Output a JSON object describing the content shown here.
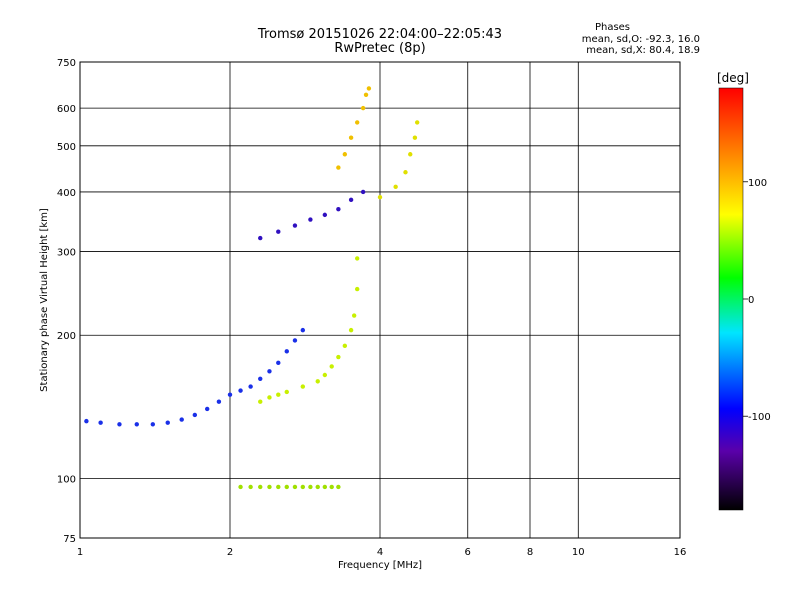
{
  "header": {
    "title_line1": "Tromsø 20151026 22:04:00–22:05:43",
    "title_line2": "RwPretec (8p)"
  },
  "phase_info": {
    "heading": "Phases",
    "line_o": "mean, sd,O:  -92.3, 16.0",
    "line_x": "mean, sd,X:  80.4, 18.9"
  },
  "chart_data": {
    "type": "scatter",
    "xlabel": "Frequency [MHz]",
    "ylabel": "Stationary phase Virtual Height [km]",
    "x_scale": "log",
    "y_scale": "log",
    "xlim": [
      1,
      16
    ],
    "ylim": [
      75,
      750
    ],
    "x_ticks": [
      1,
      2,
      4,
      6,
      8,
      10,
      16
    ],
    "x_tick_labels": [
      "1",
      "2",
      "4",
      "6",
      "8",
      "10",
      "16"
    ],
    "y_ticks": [
      75,
      100,
      200,
      300,
      400,
      500,
      600,
      750
    ],
    "y_tick_labels": [
      "75",
      "100",
      "200",
      "300",
      "400",
      "500",
      "600",
      "750"
    ],
    "grid": true,
    "colorbar": {
      "label": "[deg]",
      "range": [
        -180,
        180
      ],
      "ticks": [
        100,
        0,
        -100
      ],
      "tick_labels": [
        "100",
        "0",
        "-100"
      ],
      "stops": [
        "#000000",
        "#5a00aa",
        "#0000ff",
        "#00e5ff",
        "#00ff00",
        "#ffff00",
        "#ff8000",
        "#ff0000"
      ]
    },
    "traces": [
      {
        "name": "",
        "phase": -95,
        "color": "#1a30e8",
        "points": [
          [
            1.03,
            132
          ],
          [
            1.1,
            131
          ],
          [
            1.2,
            130
          ],
          [
            1.3,
            130
          ],
          [
            1.4,
            130
          ],
          [
            1.5,
            131
          ],
          [
            1.6,
            133
          ],
          [
            1.7,
            136
          ],
          [
            1.8,
            140
          ],
          [
            1.9,
            145
          ],
          [
            2.0,
            150
          ],
          [
            2.1,
            153
          ],
          [
            2.2,
            156
          ],
          [
            2.3,
            162
          ],
          [
            2.4,
            168
          ],
          [
            2.5,
            175
          ],
          [
            2.6,
            185
          ],
          [
            2.7,
            195
          ],
          [
            2.8,
            205
          ]
        ]
      },
      {
        "name": "",
        "phase": 95,
        "color": "#c8f000",
        "points": [
          [
            2.3,
            145
          ],
          [
            2.4,
            148
          ],
          [
            2.5,
            150
          ],
          [
            2.6,
            152
          ],
          [
            2.8,
            156
          ],
          [
            3.0,
            160
          ],
          [
            3.1,
            165
          ],
          [
            3.2,
            172
          ],
          [
            3.3,
            180
          ],
          [
            3.4,
            190
          ],
          [
            3.5,
            205
          ],
          [
            3.55,
            220
          ],
          [
            3.6,
            250
          ],
          [
            3.6,
            290
          ]
        ]
      },
      {
        "name": "",
        "phase": -110,
        "color": "#3010c0",
        "points": [
          [
            2.3,
            320
          ],
          [
            2.5,
            330
          ],
          [
            2.7,
            340
          ],
          [
            2.9,
            350
          ],
          [
            3.1,
            358
          ],
          [
            3.3,
            368
          ],
          [
            3.5,
            385
          ],
          [
            3.7,
            400
          ]
        ]
      },
      {
        "name": "",
        "phase": 110,
        "color": "#f0c000",
        "points": [
          [
            3.3,
            450
          ],
          [
            3.4,
            480
          ],
          [
            3.5,
            520
          ],
          [
            3.6,
            560
          ],
          [
            3.7,
            600
          ],
          [
            3.75,
            640
          ],
          [
            3.8,
            660
          ]
        ]
      },
      {
        "name": "",
        "phase": 100,
        "color": "#e0e000",
        "points": [
          [
            4.0,
            390
          ],
          [
            4.3,
            410
          ],
          [
            4.5,
            440
          ],
          [
            4.6,
            480
          ],
          [
            4.7,
            520
          ],
          [
            4.75,
            560
          ]
        ]
      },
      {
        "name": "",
        "phase": 70,
        "color": "#a0e000",
        "points": [
          [
            2.1,
            96
          ],
          [
            2.2,
            96
          ],
          [
            2.3,
            96
          ],
          [
            2.4,
            96
          ],
          [
            2.5,
            96
          ],
          [
            2.6,
            96
          ],
          [
            2.7,
            96
          ],
          [
            2.8,
            96
          ],
          [
            2.9,
            96
          ],
          [
            3.0,
            96
          ],
          [
            3.1,
            96
          ],
          [
            3.2,
            96
          ],
          [
            3.3,
            96
          ]
        ]
      }
    ]
  }
}
